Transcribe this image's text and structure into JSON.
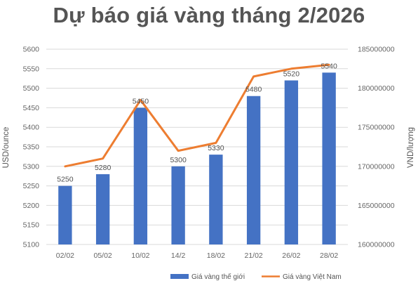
{
  "chart_data": {
    "type": "bar",
    "title": "Dự báo giá vàng tháng 2/2026",
    "categories": [
      "02/02",
      "05/02",
      "10/02",
      "14/2",
      "18/02",
      "21/02",
      "26/02",
      "28/02"
    ],
    "series": [
      {
        "name": "Giá vàng thế giới",
        "type": "bar",
        "axis": "left",
        "color": "#4472C4",
        "values": [
          5250,
          5280,
          5450,
          5300,
          5330,
          5480,
          5520,
          5540
        ],
        "labels": [
          "5250",
          "5280",
          "5450",
          "5300",
          "5330",
          "5480",
          "5520",
          "5540"
        ]
      },
      {
        "name": "Giá vàng Việt Nam",
        "type": "line",
        "axis": "right",
        "color": "#ED7D31",
        "values": [
          170000000,
          171000000,
          178500000,
          172000000,
          173000000,
          181500000,
          182500000,
          183000000
        ]
      }
    ],
    "ylabel": "USD/ounce",
    "ylabel_right": "VND/lượng",
    "ylim": [
      5100,
      5600
    ],
    "ylim_right": [
      160000000,
      185000000
    ],
    "yticks": [
      "5100",
      "5150",
      "5200",
      "5250",
      "5300",
      "5350",
      "5400",
      "5450",
      "5500",
      "5550",
      "5600"
    ],
    "yticks_right": [
      "160000000",
      "165000000",
      "170000000",
      "175000000",
      "180000000",
      "185000000"
    ],
    "grid": true,
    "legend": "bottom"
  }
}
